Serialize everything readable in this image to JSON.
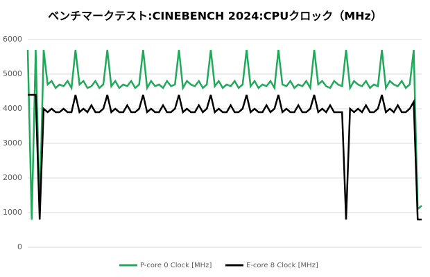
{
  "chart_data": {
    "type": "line",
    "title": "ベンチマークテスト:CINEBENCH 2024:CPUクロック（MHz）",
    "ylim": [
      0,
      6000
    ],
    "yticks": [
      0,
      1000,
      2000,
      3000,
      4000,
      5000,
      6000
    ],
    "grid": true,
    "legend": "bottom",
    "series": [
      {
        "name": "P-core 0 Clock [MHz]",
        "color": "#1faa59",
        "values": [
          5700,
          800,
          5700,
          1100,
          5700,
          4700,
          4800,
          4600,
          4700,
          4650,
          4800,
          4600,
          5700,
          4700,
          4800,
          4600,
          4650,
          4800,
          4600,
          4700,
          5700,
          4650,
          4800,
          4600,
          4700,
          4650,
          4800,
          4600,
          4700,
          5700,
          4600,
          4800,
          4650,
          4700,
          4600,
          4800,
          4650,
          4700,
          5700,
          4600,
          4800,
          4700,
          4650,
          4800,
          4600,
          4700,
          5700,
          4650,
          4800,
          4600,
          4700,
          4650,
          4800,
          4600,
          4700,
          5700,
          4650,
          4800,
          4600,
          4700,
          4650,
          4800,
          4600,
          5700,
          4700,
          4650,
          4800,
          4600,
          4700,
          4650,
          4800,
          4600,
          5700,
          4700,
          4800,
          4650,
          4600,
          4800,
          4700,
          4650,
          5700,
          4600,
          4800,
          4700,
          4650,
          4800,
          4600,
          4700,
          4650,
          5700,
          4600,
          4800,
          4700,
          4650,
          4800,
          4600,
          4700,
          5700,
          1100,
          1200
        ]
      },
      {
        "name": "E-core 8 Clock [MHz]",
        "color": "#000000",
        "values": [
          4400,
          4400,
          4400,
          800,
          4000,
          3900,
          4000,
          3900,
          3900,
          4000,
          3900,
          3900,
          4400,
          3900,
          4000,
          3900,
          4100,
          3900,
          3900,
          4000,
          4400,
          3900,
          4000,
          3900,
          3900,
          4100,
          3900,
          3900,
          4000,
          4400,
          3900,
          4000,
          3900,
          3900,
          4100,
          3900,
          3900,
          4000,
          4400,
          3900,
          4000,
          3900,
          3900,
          4100,
          3900,
          4000,
          4400,
          3900,
          4000,
          3900,
          3900,
          4100,
          3900,
          3900,
          4000,
          4400,
          3900,
          4000,
          3900,
          3900,
          4100,
          3900,
          4000,
          4400,
          3900,
          4000,
          3900,
          3900,
          4100,
          3900,
          3900,
          4000,
          4400,
          3900,
          4000,
          3900,
          4100,
          3900,
          3900,
          3900,
          800,
          4000,
          3900,
          4000,
          3900,
          4100,
          3900,
          3900,
          4000,
          4400,
          3900,
          4000,
          3900,
          4100,
          3900,
          3900,
          4000,
          4200,
          800,
          800
        ]
      }
    ]
  }
}
